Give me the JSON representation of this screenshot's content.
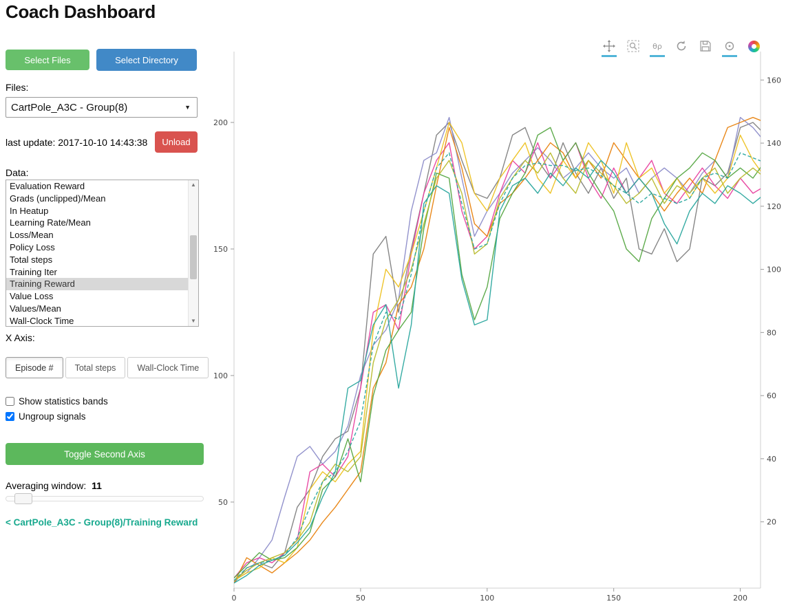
{
  "title": "Coach Dashboard",
  "buttons": {
    "select_files": "Select Files",
    "select_directory": "Select Directory",
    "unload": "Unload",
    "toggle_second_axis": "Toggle Second Axis"
  },
  "files": {
    "label": "Files:",
    "selected": "CartPole_A3C - Group(8)"
  },
  "last_update": "last update: 2017-10-10 14:43:38",
  "data_panel": {
    "label": "Data:",
    "items": [
      "Evaluation Reward",
      "Grads (unclipped)/Mean",
      "In Heatup",
      "Learning Rate/Mean",
      "Loss/Mean",
      "Policy Loss",
      "Total steps",
      "Training Iter",
      "Training Reward",
      "Value Loss",
      "Values/Mean",
      "Wall-Clock Time"
    ],
    "selected": "Training Reward"
  },
  "x_axis": {
    "label": "X Axis:",
    "options": [
      "Episode #",
      "Total steps",
      "Wall-Clock Time"
    ],
    "selected": "Episode #"
  },
  "checkboxes": [
    {
      "label": "Show statistics bands",
      "checked": false
    },
    {
      "label": "Ungroup signals",
      "checked": true
    }
  ],
  "averaging": {
    "label": "Averaging window:",
    "value": "11"
  },
  "breadcrumb": "< CartPole_A3C - Group(8)/Training Reward",
  "toolbar": {
    "tools": [
      {
        "name": "pan",
        "active": true
      },
      {
        "name": "box-zoom",
        "active": false
      },
      {
        "name": "wheel-zoom",
        "active": true,
        "glyph": "θρ"
      },
      {
        "name": "reset",
        "active": false
      },
      {
        "name": "save",
        "active": false
      },
      {
        "name": "hover",
        "active": true
      },
      {
        "name": "bokeh-logo",
        "active": false
      }
    ]
  },
  "colors": {
    "accent_green": "#5cb85c",
    "accent_blue": "#4189c7",
    "danger_red": "#d9534f",
    "link_teal": "#18a98e",
    "tool_active_underline": "#51b5d8"
  },
  "chart_data": {
    "type": "line",
    "title": "",
    "xlabel": "",
    "ylabel": "",
    "legend": "none",
    "grid": false,
    "x_ticks": [
      0,
      50,
      100,
      150,
      200
    ],
    "y_left_ticks": [
      50,
      100,
      150,
      200
    ],
    "y_right_ticks": [
      20,
      40,
      60,
      80,
      100,
      120,
      140,
      160
    ],
    "x_range": [
      0,
      208
    ],
    "y_left_range": [
      16,
      228
    ],
    "y_right_range": [
      -1,
      169
    ],
    "x_start": 0,
    "x_step": 5,
    "series": [
      {
        "name": "gray",
        "color": "#7f7f7f",
        "dash": null,
        "values": [
          18,
          24,
          26,
          24,
          30,
          48,
          55,
          68,
          75,
          78,
          95,
          148,
          155,
          125,
          150,
          172,
          195,
          200,
          185,
          172,
          170,
          178,
          195,
          198,
          185,
          178,
          192,
          180,
          172,
          182,
          170,
          178,
          150,
          148,
          158,
          145,
          150,
          178,
          175,
          180,
          198,
          200,
          195
        ]
      },
      {
        "name": "purple",
        "color": "#8c8cc9",
        "dash": null,
        "values": [
          19,
          22,
          28,
          35,
          52,
          68,
          72,
          65,
          70,
          80,
          100,
          112,
          118,
          130,
          165,
          185,
          188,
          202,
          178,
          155,
          165,
          172,
          180,
          185,
          190,
          185,
          178,
          182,
          188,
          182,
          178,
          182,
          172,
          178,
          182,
          178,
          172,
          180,
          185,
          178,
          202,
          198,
          192
        ]
      },
      {
        "name": "magenta",
        "color": "#e8419f",
        "dash": null,
        "values": [
          20,
          26,
          28,
          26,
          30,
          35,
          62,
          65,
          60,
          68,
          95,
          125,
          128,
          118,
          148,
          172,
          185,
          192,
          165,
          150,
          155,
          172,
          185,
          180,
          192,
          178,
          185,
          192,
          178,
          170,
          182,
          172,
          178,
          185,
          172,
          168,
          175,
          182,
          175,
          170,
          178,
          172,
          175
        ]
      },
      {
        "name": "orange",
        "color": "#e8820e",
        "dash": null,
        "values": [
          18,
          28,
          25,
          22,
          26,
          30,
          35,
          42,
          48,
          55,
          62,
          95,
          105,
          128,
          135,
          150,
          175,
          198,
          182,
          160,
          155,
          168,
          172,
          178,
          185,
          192,
          188,
          178,
          185,
          178,
          192,
          185,
          178,
          172,
          165,
          172,
          178,
          172,
          185,
          198,
          200,
          202,
          200
        ]
      },
      {
        "name": "yellow",
        "color": "#edc120",
        "dash": null,
        "values": [
          19,
          22,
          24,
          28,
          26,
          32,
          55,
          62,
          58,
          65,
          70,
          118,
          142,
          135,
          148,
          165,
          182,
          200,
          192,
          172,
          165,
          178,
          185,
          192,
          178,
          172,
          185,
          178,
          192,
          185,
          172,
          192,
          178,
          182,
          172,
          178,
          170,
          178,
          172,
          178,
          195,
          185,
          178
        ]
      },
      {
        "name": "green",
        "color": "#55a642",
        "dash": null,
        "values": [
          20,
          25,
          30,
          27,
          28,
          32,
          38,
          55,
          60,
          75,
          58,
          92,
          110,
          118,
          125,
          158,
          180,
          178,
          140,
          122,
          135,
          162,
          172,
          180,
          195,
          198,
          185,
          192,
          180,
          172,
          165,
          150,
          145,
          162,
          170,
          178,
          182,
          188,
          185,
          178,
          182,
          178,
          185
        ]
      },
      {
        "name": "olive",
        "color": "#b8bb2d",
        "dash": null,
        "values": [
          19,
          23,
          26,
          28,
          30,
          35,
          42,
          58,
          65,
          62,
          68,
          105,
          122,
          130,
          142,
          160,
          178,
          185,
          172,
          148,
          152,
          170,
          178,
          185,
          180,
          188,
          178,
          172,
          185,
          180,
          175,
          168,
          172,
          178,
          168,
          175,
          172,
          178,
          182,
          172,
          178,
          182,
          178
        ]
      },
      {
        "name": "teal",
        "color": "#2aa79e",
        "dash": null,
        "values": [
          18,
          21,
          25,
          27,
          29,
          34,
          40,
          52,
          62,
          95,
          98,
          120,
          128,
          95,
          120,
          168,
          175,
          172,
          138,
          120,
          122,
          165,
          175,
          178,
          172,
          180,
          175,
          182,
          178,
          185,
          180,
          172,
          178,
          172,
          160,
          152,
          165,
          172,
          168,
          175,
          172,
          168,
          172
        ]
      },
      {
        "name": "teal-dashed-mean",
        "color": "#2aa79e",
        "dash": "5 3",
        "values": [
          19,
          24,
          26,
          27,
          29,
          36,
          48,
          58,
          62,
          70,
          82,
          112,
          125,
          122,
          140,
          165,
          182,
          188,
          168,
          150,
          152,
          168,
          178,
          183,
          184,
          183,
          183,
          181,
          182,
          179,
          175,
          172,
          168,
          172,
          170,
          168,
          170,
          178,
          180,
          178,
          188,
          186,
          184
        ]
      }
    ]
  }
}
